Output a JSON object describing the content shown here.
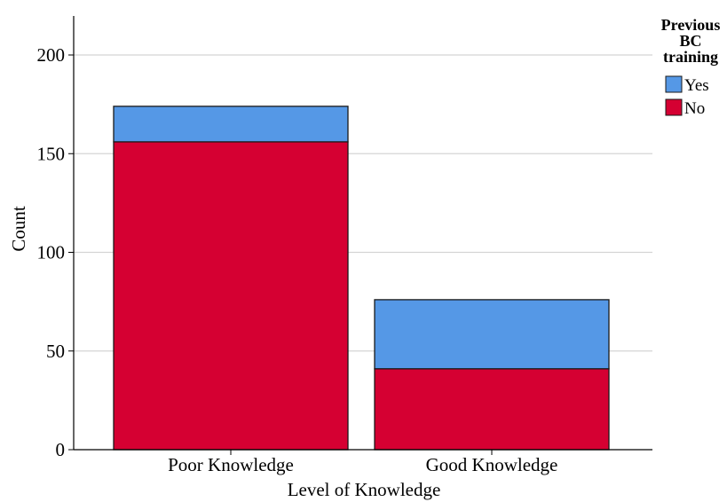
{
  "chart_data": {
    "type": "bar",
    "stacked": true,
    "categories": [
      "Poor Knowledge",
      "Good Knowledge"
    ],
    "series": [
      {
        "name": "No",
        "values": [
          156,
          41
        ],
        "color": "#d50032"
      },
      {
        "name": "Yes",
        "values": [
          18,
          35
        ],
        "color": "#5598e6"
      }
    ],
    "xlabel": "Level of Knowledge",
    "ylabel": "Count",
    "ylim": [
      0,
      220
    ],
    "yticks": [
      0,
      50,
      100,
      150,
      200
    ],
    "grid": true,
    "legend": {
      "title_lines": [
        "Previous",
        "BC",
        "training"
      ],
      "placement": "top-right",
      "order": [
        "Yes",
        "No"
      ]
    }
  }
}
